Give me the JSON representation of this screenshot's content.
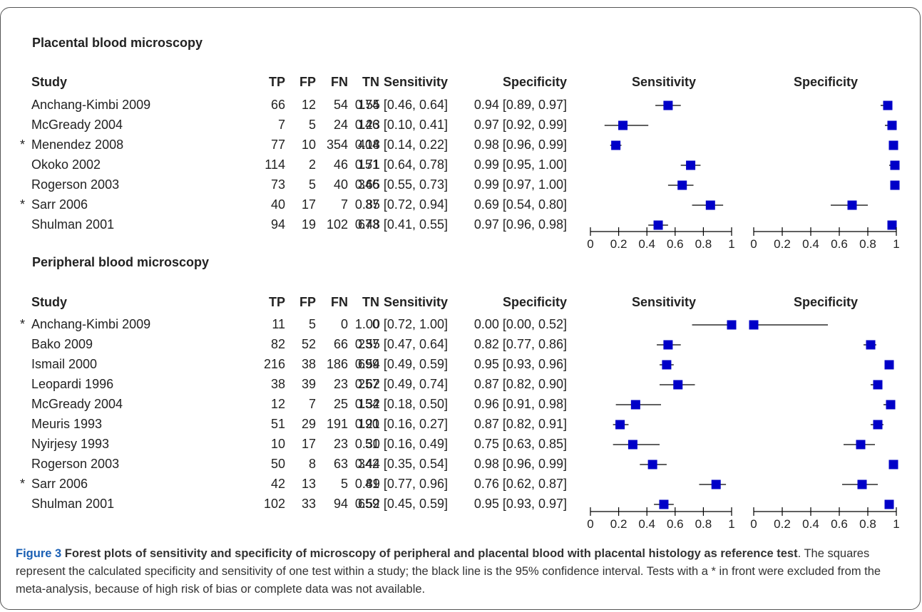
{
  "columns": {
    "study": "Study",
    "tp": "TP",
    "fp": "FP",
    "fn": "FN",
    "tn": "TN",
    "sensitivity": "Sensitivity",
    "specificity": "Specificity"
  },
  "plot_headers": {
    "sensitivity": "Sensitivity",
    "specificity": "Specificity"
  },
  "axis_ticks": [
    "0",
    "0.2",
    "0.4",
    "0.6",
    "0.8",
    "1"
  ],
  "colors": {
    "marker": "#0000c8",
    "ci_line": "#000000",
    "figure_label": "#1a5fb4"
  },
  "sections": [
    {
      "title": "Placental blood microscopy",
      "rows": [
        {
          "study": "Anchang-Kimbi 2009",
          "excluded": false,
          "tp": "66",
          "fp": "12",
          "fn": "54",
          "tn": "174",
          "sens_text": "0.55 [0.46, 0.64]",
          "spec_text": "0.94 [0.89, 0.97]"
        },
        {
          "study": "McGready 2004",
          "excluded": false,
          "tp": "7",
          "fp": "5",
          "fn": "24",
          "tn": "146",
          "sens_text": "0.23 [0.10, 0.41]",
          "spec_text": "0.97 [0.92, 0.99]"
        },
        {
          "study": "Menendez 2008",
          "excluded": true,
          "tp": "77",
          "fp": "10",
          "fn": "354",
          "tn": "404",
          "sens_text": "0.18 [0.14, 0.22]",
          "spec_text": "0.98 [0.96, 0.99]"
        },
        {
          "study": "Okoko 2002",
          "excluded": false,
          "tp": "114",
          "fp": "2",
          "fn": "46",
          "tn": "151",
          "sens_text": "0.71 [0.64, 0.78]",
          "spec_text": "0.99 [0.95, 1.00]"
        },
        {
          "study": "Rogerson 2003",
          "excluded": false,
          "tp": "73",
          "fp": "5",
          "fn": "40",
          "tn": "346",
          "sens_text": "0.65 [0.55, 0.73]",
          "spec_text": "0.99 [0.97, 1.00]"
        },
        {
          "study": "Sarr 2006",
          "excluded": true,
          "tp": "40",
          "fp": "17",
          "fn": "7",
          "tn": "37",
          "sens_text": "0.85 [0.72, 0.94]",
          "spec_text": "0.69 [0.54, 0.80]"
        },
        {
          "study": "Shulman 2001",
          "excluded": false,
          "tp": "94",
          "fp": "19",
          "fn": "102",
          "tn": "673",
          "sens_text": "0.48 [0.41, 0.55]",
          "spec_text": "0.97 [0.96, 0.98]"
        }
      ]
    },
    {
      "title": "Peripheral blood microscopy",
      "rows": [
        {
          "study": "Anchang-Kimbi 2009",
          "excluded": true,
          "tp": "11",
          "fp": "5",
          "fn": "0",
          "tn": "0",
          "sens_text": "1.00 [0.72, 1.00]",
          "spec_text": "0.00 [0.00, 0.52]"
        },
        {
          "study": "Bako 2009",
          "excluded": false,
          "tp": "82",
          "fp": "52",
          "fn": "66",
          "tn": "237",
          "sens_text": "0.55 [0.47, 0.64]",
          "spec_text": "0.82 [0.77, 0.86]"
        },
        {
          "study": "Ismail 2000",
          "excluded": false,
          "tp": "216",
          "fp": "38",
          "fn": "186",
          "tn": "699",
          "sens_text": "0.54 [0.49, 0.59]",
          "spec_text": "0.95 [0.93, 0.96]"
        },
        {
          "study": "Leopardi 1996",
          "excluded": false,
          "tp": "38",
          "fp": "39",
          "fn": "23",
          "tn": "257",
          "sens_text": "0.62 [0.49, 0.74]",
          "spec_text": "0.87 [0.82, 0.90]"
        },
        {
          "study": "McGready 2004",
          "excluded": false,
          "tp": "12",
          "fp": "7",
          "fn": "25",
          "tn": "154",
          "sens_text": "0.32 [0.18, 0.50]",
          "spec_text": "0.96 [0.91, 0.98]"
        },
        {
          "study": "Meuris 1993",
          "excluded": false,
          "tp": "51",
          "fp": "29",
          "fn": "191",
          "tn": "190",
          "sens_text": "0.21 [0.16, 0.27]",
          "spec_text": "0.87 [0.82, 0.91]"
        },
        {
          "study": "Nyirjesy 1993",
          "excluded": false,
          "tp": "10",
          "fp": "17",
          "fn": "23",
          "tn": "51",
          "sens_text": "0.30 [0.16, 0.49]",
          "spec_text": "0.75 [0.63, 0.85]"
        },
        {
          "study": "Rogerson 2003",
          "excluded": false,
          "tp": "50",
          "fp": "8",
          "fn": "63",
          "tn": "342",
          "sens_text": "0.44 [0.35, 0.54]",
          "spec_text": "0.98 [0.96, 0.99]"
        },
        {
          "study": "Sarr 2006",
          "excluded": true,
          "tp": "42",
          "fp": "13",
          "fn": "5",
          "tn": "41",
          "sens_text": "0.89 [0.77, 0.96]",
          "spec_text": "0.76 [0.62, 0.87]"
        },
        {
          "study": "Shulman 2001",
          "excluded": false,
          "tp": "102",
          "fp": "33",
          "fn": "94",
          "tn": "659",
          "sens_text": "0.52 [0.45, 0.59]",
          "spec_text": "0.95 [0.93, 0.97]"
        }
      ]
    }
  ],
  "chart_data": [
    {
      "type": "forest",
      "title": "Placental blood microscopy",
      "panels": [
        "Sensitivity",
        "Specificity"
      ],
      "xlim": [
        0,
        1
      ],
      "categories": [
        "Anchang-Kimbi 2009",
        "McGready 2004",
        "Menendez 2008",
        "Okoko 2002",
        "Rogerson 2003",
        "Sarr 2006",
        "Shulman 2001"
      ],
      "sensitivity": [
        [
          0.55,
          0.46,
          0.64
        ],
        [
          0.23,
          0.1,
          0.41
        ],
        [
          0.18,
          0.14,
          0.22
        ],
        [
          0.71,
          0.64,
          0.78
        ],
        [
          0.65,
          0.55,
          0.73
        ],
        [
          0.85,
          0.72,
          0.94
        ],
        [
          0.48,
          0.41,
          0.55
        ]
      ],
      "specificity": [
        [
          0.94,
          0.89,
          0.97
        ],
        [
          0.97,
          0.92,
          0.99
        ],
        [
          0.98,
          0.96,
          0.99
        ],
        [
          0.99,
          0.95,
          1.0
        ],
        [
          0.99,
          0.97,
          1.0
        ],
        [
          0.69,
          0.54,
          0.8
        ],
        [
          0.97,
          0.96,
          0.98
        ]
      ]
    },
    {
      "type": "forest",
      "title": "Peripheral blood microscopy",
      "panels": [
        "Sensitivity",
        "Specificity"
      ],
      "xlim": [
        0,
        1
      ],
      "categories": [
        "Anchang-Kimbi 2009",
        "Bako 2009",
        "Ismail 2000",
        "Leopardi 1996",
        "McGready 2004",
        "Meuris 1993",
        "Nyirjesy 1993",
        "Rogerson 2003",
        "Sarr 2006",
        "Shulman 2001"
      ],
      "sensitivity": [
        [
          1.0,
          0.72,
          1.0
        ],
        [
          0.55,
          0.47,
          0.64
        ],
        [
          0.54,
          0.49,
          0.59
        ],
        [
          0.62,
          0.49,
          0.74
        ],
        [
          0.32,
          0.18,
          0.5
        ],
        [
          0.21,
          0.16,
          0.27
        ],
        [
          0.3,
          0.16,
          0.49
        ],
        [
          0.44,
          0.35,
          0.54
        ],
        [
          0.89,
          0.77,
          0.96
        ],
        [
          0.52,
          0.45,
          0.59
        ]
      ],
      "specificity": [
        [
          0.0,
          0.0,
          0.52
        ],
        [
          0.82,
          0.77,
          0.86
        ],
        [
          0.95,
          0.93,
          0.96
        ],
        [
          0.87,
          0.82,
          0.9
        ],
        [
          0.96,
          0.91,
          0.98
        ],
        [
          0.87,
          0.82,
          0.91
        ],
        [
          0.75,
          0.63,
          0.85
        ],
        [
          0.98,
          0.96,
          0.99
        ],
        [
          0.76,
          0.62,
          0.87
        ],
        [
          0.95,
          0.93,
          0.97
        ]
      ]
    }
  ],
  "caption": {
    "figure_label": "Figure 3",
    "title_bold": "Forest plots of sensitivity and specificity of microscopy of peripheral and placental blood with placental histology as reference test",
    "text": ". The squares represent the calculated specificity and sensitivity of one test within a study; the black line is the 95% confidence interval. Tests with a * in front were excluded from the meta-analysis, because of high risk of bias or complete data was not available."
  }
}
